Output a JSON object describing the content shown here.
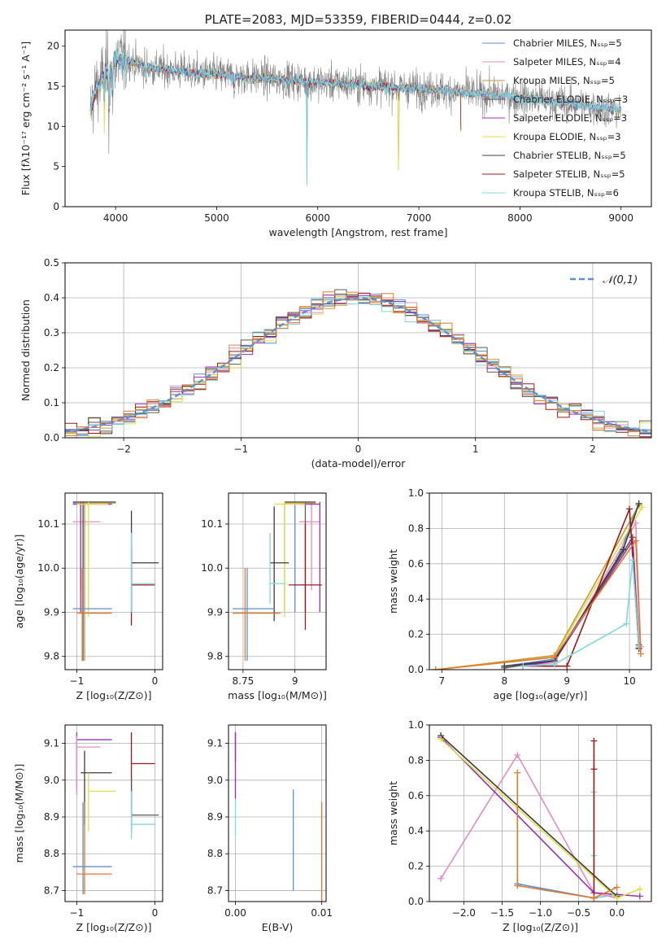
{
  "palette": [
    "#5b8fd6",
    "#e58bc4",
    "#c99433",
    "#5a5a5a",
    "#9b32b3",
    "#dde04a",
    "#3c3c3c",
    "#a01818",
    "#7fd9e0"
  ],
  "orange": "#e07a2c",
  "chart_data": [
    {
      "id": "spectrum",
      "type": "line",
      "title": "PLATE=2083, MJD=53359, FIBERID=0444, z=0.02",
      "xlabel": "wavelength [Angstrom, rest frame]",
      "ylabel": "Flux [fλ10⁻¹⁷ erg cm⁻² s⁻¹ A⁻¹]",
      "xlim": [
        3500,
        9300
      ],
      "ylim": [
        0,
        22
      ],
      "xticks": [
        4000,
        5000,
        6000,
        7000,
        8000,
        9000
      ],
      "yticks": [
        0,
        5,
        10,
        15,
        20
      ],
      "grid": false,
      "legend_position": "top-right",
      "legend": [
        "Chabrier MILES, Nₛₛₚ=5",
        "Salpeter MILES, Nₛₛₚ=4",
        "Kroupa MILES, Nₛₛₚ=5",
        "Chabrier ELODIE, Nₛₛₚ=3",
        "Salpeter ELODIE, Nₛₛₚ=3",
        "Kroupa ELODIE, Nₛₛₚ=3",
        "Chabrier STELIB, Nₛₛₚ=5",
        "Salpeter STELIB, Nₛₛₚ=5",
        "Kroupa STELIB, Nₛₛₚ=6"
      ],
      "continuum": {
        "x": [
          3750,
          3800,
          3850,
          3900,
          3950,
          4000,
          4100,
          4200,
          4300,
          4400,
          4600,
          4800,
          5000,
          5200,
          5500,
          5800,
          6000,
          6300,
          6600,
          6900,
          7200,
          7500,
          7800,
          8100,
          8400,
          8700,
          9000
        ],
        "y": [
          12.0,
          14.5,
          15.5,
          17.0,
          16.8,
          18.2,
          18.5,
          17.8,
          17.5,
          17.2,
          17.0,
          16.6,
          16.5,
          16.2,
          16.0,
          15.7,
          15.5,
          15.3,
          15.0,
          14.8,
          14.5,
          14.2,
          13.9,
          13.4,
          13.0,
          12.5,
          12.0
        ]
      },
      "absorption_lines": [
        {
          "x": 3890,
          "depth": 12
        },
        {
          "x": 3934,
          "depth": 7
        },
        {
          "x": 3969,
          "depth": 6
        },
        {
          "x": 4102,
          "depth": 3
        },
        {
          "x": 4300,
          "depth": 2.5
        },
        {
          "x": 5175,
          "depth": 2
        },
        {
          "x": 5893,
          "depth": 15
        },
        {
          "x": 6800,
          "depth": 15
        },
        {
          "x": 7420,
          "depth": 14
        }
      ]
    },
    {
      "id": "residuals",
      "type": "line",
      "xlabel": "(data-model)/error",
      "ylabel": "Normed distribution",
      "xlim": [
        -2.5,
        2.5
      ],
      "ylim": [
        0,
        0.5
      ],
      "xticks": [
        -2,
        -1,
        0,
        1,
        2
      ],
      "yticks": [
        0.0,
        0.1,
        0.2,
        0.3,
        0.4,
        0.5
      ],
      "grid": true,
      "legend_position": "top-right",
      "reference_curve": {
        "name": "𝒩(0,1)",
        "mean": 0,
        "sigma": 1
      }
    },
    {
      "id": "age-vs-z",
      "type": "scatter",
      "xlabel": "Z [log₁₀(Z/Z⊙)]",
      "ylabel": "age  [log₁₀(age/yr)]",
      "xlim": [
        -1.15,
        0.1
      ],
      "ylim": [
        9.77,
        10.17
      ],
      "xticks": [
        -1,
        0
      ],
      "yticks": [
        9.8,
        9.9,
        10.0,
        10.1
      ],
      "grid": true,
      "errorbars": [
        {
          "x": -0.92,
          "y": 10.148,
          "xlo": -1.05,
          "xhi": -0.5,
          "ylo": 9.79,
          "yhi": 10.15,
          "c": 0
        },
        {
          "x": -0.95,
          "y": 10.105,
          "xlo": -1.05,
          "xhi": -0.7,
          "ylo": 9.95,
          "yhi": 10.15,
          "c": 1
        },
        {
          "x": -0.9,
          "y": 10.148,
          "xlo": -1.0,
          "xhi": -0.5,
          "ylo": 9.79,
          "yhi": 10.15,
          "c": 2
        },
        {
          "x": -0.92,
          "y": 10.15,
          "xlo": -1.05,
          "xhi": -0.5,
          "ylo": 9.79,
          "yhi": 10.15,
          "c": 3
        },
        {
          "x": -0.95,
          "y": 10.145,
          "xlo": -1.05,
          "xhi": -0.55,
          "ylo": 9.9,
          "yhi": 10.15,
          "c": 4
        },
        {
          "x": -0.85,
          "y": 10.145,
          "xlo": -1.0,
          "xhi": -0.6,
          "ylo": 9.89,
          "yhi": 10.15,
          "c": 5
        },
        {
          "x": -0.3,
          "y": 10.012,
          "xlo": -0.3,
          "xhi": 0.05,
          "ylo": 9.9,
          "yhi": 10.13,
          "c": 6
        },
        {
          "x": -0.3,
          "y": 9.962,
          "xlo": -0.3,
          "xhi": 0.0,
          "ylo": 9.87,
          "yhi": 10.05,
          "c": 7
        },
        {
          "x": -0.3,
          "y": 9.965,
          "xlo": -0.3,
          "xhi": 0.0,
          "ylo": 9.9,
          "yhi": 10.08,
          "c": 8
        },
        {
          "x": -0.92,
          "y": 9.908,
          "xlo": -1.05,
          "xhi": -0.55,
          "ylo": 9.79,
          "yhi": 10.0,
          "c": 0
        },
        {
          "x": -0.93,
          "y": 9.898,
          "xlo": -1.0,
          "xhi": -0.55,
          "ylo": 9.79,
          "yhi": 10.0,
          "o": true
        }
      ]
    },
    {
      "id": "age-vs-mass",
      "type": "scatter",
      "xlabel": "mass [log₁₀(M/M⊙)]",
      "ylabel": "",
      "xlim": [
        8.68,
        9.15
      ],
      "ylim": [
        9.77,
        10.17
      ],
      "xticks": [
        8.75,
        9.0
      ],
      "yticks": [
        9.8,
        9.9,
        10.0,
        10.1
      ],
      "grid": true,
      "errorbars": [
        {
          "x": 9.0,
          "y": 10.148,
          "xlo": 8.95,
          "xhi": 9.1,
          "ylo": 9.9,
          "yhi": 10.15,
          "c": 0
        },
        {
          "x": 9.08,
          "y": 10.105,
          "xlo": 9.02,
          "xhi": 9.12,
          "ylo": 9.95,
          "yhi": 10.15,
          "c": 1
        },
        {
          "x": 8.95,
          "y": 10.148,
          "xlo": 8.95,
          "xhi": 9.1,
          "ylo": 9.9,
          "yhi": 10.15,
          "c": 2
        },
        {
          "x": 9.05,
          "y": 10.15,
          "xlo": 8.95,
          "xhi": 9.1,
          "ylo": 9.9,
          "yhi": 10.15,
          "c": 3
        },
        {
          "x": 9.12,
          "y": 10.145,
          "xlo": 9.02,
          "xhi": 9.12,
          "ylo": 9.9,
          "yhi": 10.15,
          "c": 4
        },
        {
          "x": 8.95,
          "y": 10.145,
          "xlo": 8.9,
          "xhi": 9.05,
          "ylo": 9.89,
          "yhi": 10.15,
          "c": 5
        },
        {
          "x": 8.9,
          "y": 10.012,
          "xlo": 8.88,
          "xhi": 8.97,
          "ylo": 9.88,
          "yhi": 10.14,
          "c": 6
        },
        {
          "x": 9.05,
          "y": 9.962,
          "xlo": 8.97,
          "xhi": 9.13,
          "ylo": 9.86,
          "yhi": 10.1,
          "c": 7
        },
        {
          "x": 8.88,
          "y": 9.965,
          "xlo": 8.88,
          "xhi": 8.95,
          "ylo": 9.92,
          "yhi": 10.08,
          "c": 8
        },
        {
          "x": 8.77,
          "y": 9.908,
          "xlo": 8.7,
          "xhi": 8.9,
          "ylo": 9.79,
          "yhi": 10.0,
          "c": 0
        },
        {
          "x": 8.76,
          "y": 9.898,
          "xlo": 8.7,
          "xhi": 8.93,
          "ylo": 9.79,
          "yhi": 10.0,
          "o": true
        }
      ]
    },
    {
      "id": "weight-vs-age",
      "type": "line",
      "xlabel": "age  [log₁₀(age/yr)]",
      "ylabel": "mass weight",
      "xlim": [
        6.8,
        10.35
      ],
      "ylim": [
        0,
        1
      ],
      "xticks": [
        7,
        8,
        9,
        10
      ],
      "yticks": [
        0.0,
        0.2,
        0.4,
        0.6,
        0.8,
        1.0
      ],
      "grid": true,
      "series": [
        {
          "c": 0,
          "x": [
            8.0,
            8.8,
            9.8,
            10.15
          ],
          "y": [
            0.02,
            0.06,
            0.62,
            0.94
          ]
        },
        {
          "c": 1,
          "x": [
            8.3,
            8.8,
            10.1,
            10.18
          ],
          "y": [
            0.02,
            0.04,
            0.83,
            0.13
          ]
        },
        {
          "c": 2,
          "x": [
            6.9,
            8.8,
            10.15
          ],
          "y": [
            0.0,
            0.08,
            0.93
          ]
        },
        {
          "c": 3,
          "x": [
            8.0,
            8.8,
            10.05,
            10.15
          ],
          "y": [
            0.01,
            0.05,
            0.75,
            0.14
          ]
        },
        {
          "c": 4,
          "x": [
            8.3,
            8.8,
            10.05,
            10.15
          ],
          "y": [
            0.02,
            0.05,
            0.73,
            0.12
          ]
        },
        {
          "c": 5,
          "x": [
            6.9,
            8.8,
            10.2
          ],
          "y": [
            0.0,
            0.07,
            0.92
          ]
        },
        {
          "c": 6,
          "x": [
            8.0,
            8.8,
            9.9,
            10.15
          ],
          "y": [
            0.02,
            0.05,
            0.68,
            0.94
          ]
        },
        {
          "c": 7,
          "x": [
            8.3,
            9.0,
            10.0,
            10.15
          ],
          "y": [
            0.02,
            0.02,
            0.91,
            0.12
          ]
        },
        {
          "c": 8,
          "x": [
            8.3,
            8.8,
            9.95,
            10.05,
            10.15
          ],
          "y": [
            0.02,
            0.03,
            0.26,
            0.62,
            0.13
          ]
        },
        {
          "o": true,
          "x": [
            6.9,
            8.8,
            10.1,
            10.18
          ],
          "y": [
            0.0,
            0.07,
            0.73,
            0.09
          ]
        }
      ]
    },
    {
      "id": "mass-vs-z",
      "type": "scatter",
      "xlabel": "Z [log₁₀(Z/Z⊙)]",
      "ylabel": "mass [log₁₀(M/M⊙)]",
      "xlim": [
        -1.15,
        0.1
      ],
      "ylim": [
        8.67,
        9.15
      ],
      "xticks": [
        -1,
        0
      ],
      "yticks": [
        8.7,
        8.8,
        8.9,
        9.0,
        9.1
      ],
      "grid": true,
      "errorbars": [
        {
          "x": -1.0,
          "y": 9.11,
          "xlo": -1.0,
          "xhi": -0.55,
          "ylo": 8.97,
          "yhi": 9.13,
          "c": 4
        },
        {
          "x": -1.0,
          "y": 9.09,
          "xlo": -1.0,
          "xhi": -0.7,
          "ylo": 8.96,
          "yhi": 9.12,
          "c": 1
        },
        {
          "x": -0.9,
          "y": 9.02,
          "xlo": -0.95,
          "xhi": -0.55,
          "ylo": 8.88,
          "yhi": 9.08,
          "c": 6
        },
        {
          "x": -0.85,
          "y": 8.97,
          "xlo": -0.85,
          "xhi": -0.5,
          "ylo": 8.86,
          "yhi": 9.02,
          "c": 5
        },
        {
          "x": -0.3,
          "y": 9.045,
          "xlo": -0.3,
          "xhi": 0.0,
          "ylo": 8.9,
          "yhi": 9.13,
          "c": 7
        },
        {
          "x": -0.3,
          "y": 8.905,
          "xlo": -0.3,
          "xhi": 0.05,
          "ylo": 8.86,
          "yhi": 9.0,
          "c": 3
        },
        {
          "x": -0.3,
          "y": 8.88,
          "xlo": -0.3,
          "xhi": 0.0,
          "ylo": 8.84,
          "yhi": 8.97,
          "c": 8
        },
        {
          "x": -0.92,
          "y": 8.765,
          "xlo": -1.05,
          "xhi": -0.55,
          "ylo": 8.69,
          "yhi": 8.94,
          "c": 0
        },
        {
          "x": -0.9,
          "y": 8.745,
          "xlo": -1.0,
          "xhi": -0.55,
          "ylo": 8.69,
          "yhi": 8.94,
          "o": true
        }
      ]
    },
    {
      "id": "mass-vs-ebv",
      "type": "scatter",
      "xlabel": "E(B-V)",
      "ylabel": "",
      "xlim": [
        -0.0008,
        0.0105
      ],
      "ylim": [
        8.67,
        9.15
      ],
      "xticks": [
        0.0,
        0.01
      ],
      "ytick_values": [
        8.7,
        8.8,
        8.9,
        9.0,
        9.1
      ],
      "grid": true,
      "errorbars": [
        {
          "x": 0.0,
          "y": 9.1,
          "ylo": 9.05,
          "yhi": 9.13,
          "c": 7
        },
        {
          "x": 0.0,
          "y": 9.0,
          "ylo": 8.85,
          "yhi": 9.12,
          "c": 8
        },
        {
          "x": 0.0,
          "y": 9.05,
          "ylo": 8.95,
          "yhi": 9.13,
          "c": 4
        },
        {
          "x": 0.0067,
          "y": 8.84,
          "ylo": 8.7,
          "yhi": 8.975,
          "c": 0
        },
        {
          "x": 0.01,
          "y": 8.8,
          "ylo": 8.67,
          "yhi": 8.94,
          "o": true
        }
      ]
    },
    {
      "id": "weight-vs-z",
      "type": "line",
      "xlabel": "Z [log₁₀(Z/Z⊙)]",
      "ylabel": "mass weight",
      "xlim": [
        -2.45,
        0.45
      ],
      "ylim": [
        0,
        1
      ],
      "xticks": [
        -2.0,
        -1.5,
        -1.0,
        -0.5,
        0.0
      ],
      "yticks": [
        0.0,
        0.2,
        0.4,
        0.6,
        0.8,
        1.0
      ],
      "grid": true,
      "series": [
        {
          "c": 0,
          "x": [
            -1.3,
            -0.3,
            0.0
          ],
          "y": [
            0.1,
            0.02,
            0.04
          ]
        },
        {
          "c": 8,
          "x": [
            -0.3,
            -0.3,
            -0.3,
            0.0
          ],
          "y": [
            0.62,
            0.26,
            0.02,
            0.04
          ]
        },
        {
          "c": 1,
          "x": [
            -2.3,
            -1.3,
            -0.3,
            0.0
          ],
          "y": [
            0.13,
            0.83,
            0.05,
            0.02
          ]
        },
        {
          "c": 4,
          "x": [
            -2.3,
            -0.3,
            0.3
          ],
          "y": [
            0.93,
            0.05,
            0.03
          ]
        },
        {
          "c": 6,
          "x": [
            -2.3,
            0.0
          ],
          "y": [
            0.94,
            0.03
          ]
        },
        {
          "c": 5,
          "x": [
            -2.3,
            0.0,
            0.3
          ],
          "y": [
            0.92,
            0.02,
            0.07
          ]
        },
        {
          "c": 7,
          "x": [
            -0.3,
            -0.3,
            -0.3
          ],
          "y": [
            0.91,
            0.75,
            0.02
          ]
        },
        {
          "o": true,
          "x": [
            -1.3,
            -1.3,
            -0.3,
            0.0
          ],
          "y": [
            0.73,
            0.09,
            0.02,
            0.08
          ]
        }
      ]
    }
  ]
}
